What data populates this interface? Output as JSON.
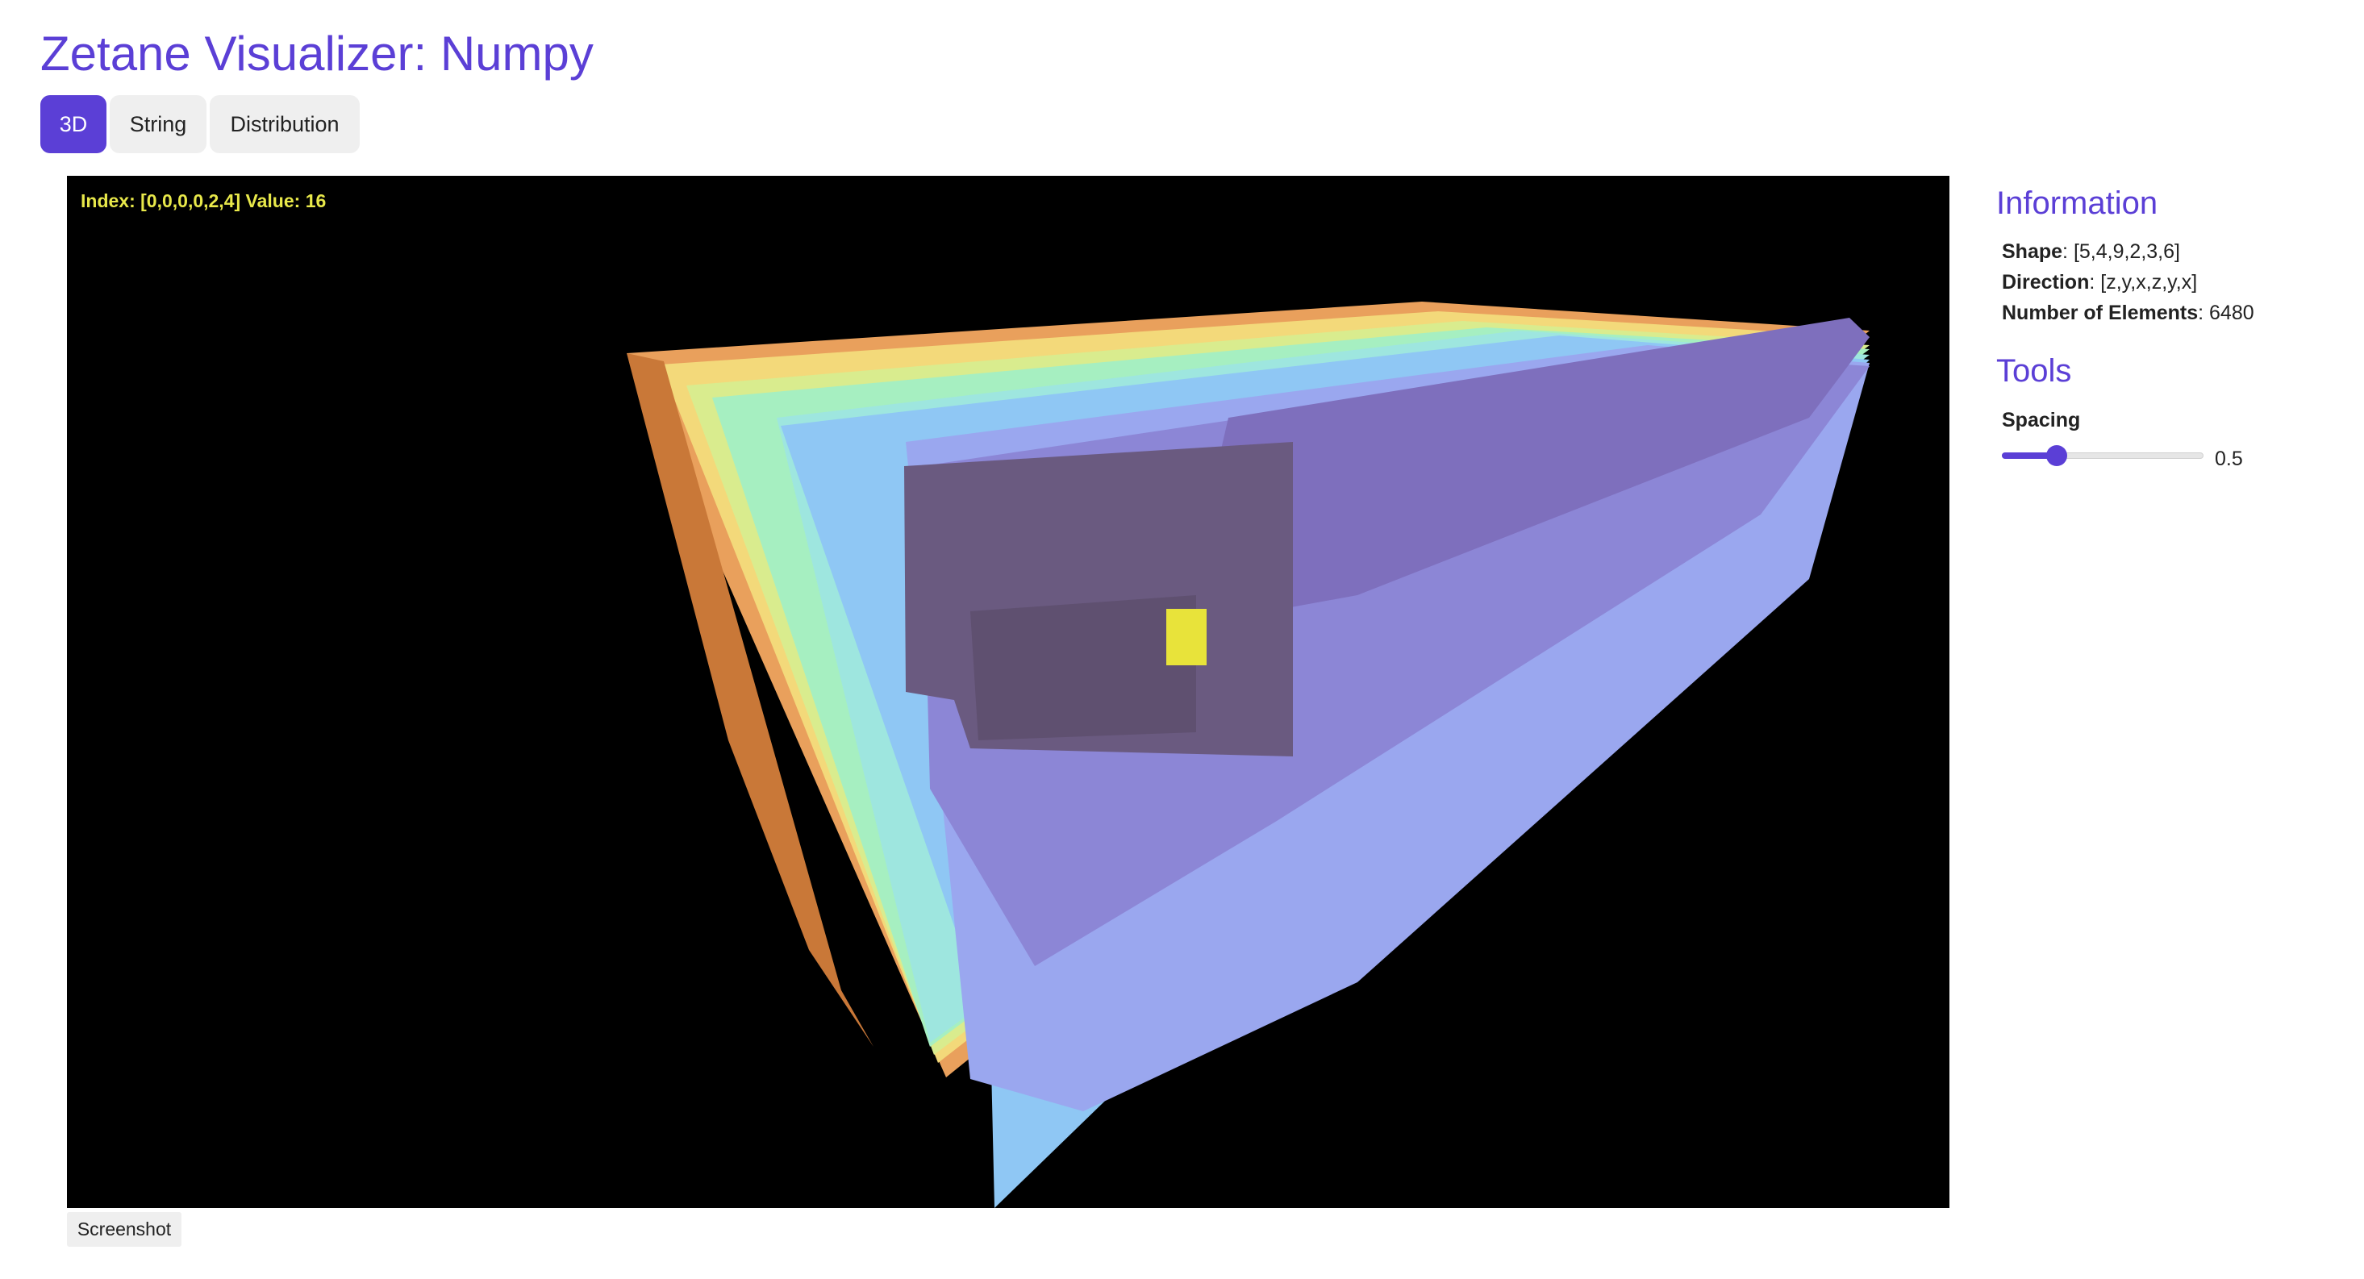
{
  "header": {
    "title": "Zetane Visualizer: Numpy"
  },
  "tabs": [
    {
      "label": "3D",
      "active": true
    },
    {
      "label": "String",
      "active": false
    },
    {
      "label": "Distribution",
      "active": false
    }
  ],
  "viewport": {
    "hover_index_label": "Index:",
    "hover_index": "[0,0,0,0,2,4]",
    "hover_value_label": "Value:",
    "hover_value": "16",
    "background": "#000000"
  },
  "screenshot_button": {
    "label": "Screenshot"
  },
  "information": {
    "heading": "Information",
    "shape_label": "Shape",
    "shape": "[5,4,9,2,3,6]",
    "direction_label": "Direction",
    "direction": "[z,y,x,z,y,x]",
    "elements_label": "Number of Elements",
    "elements": "6480"
  },
  "tools": {
    "heading": "Tools",
    "spacing_label": "Spacing",
    "spacing_value": "0.5",
    "spacing_fraction": 0.27
  },
  "colors": {
    "accent": "#5b3fd6",
    "highlight": "#e8e84a"
  }
}
